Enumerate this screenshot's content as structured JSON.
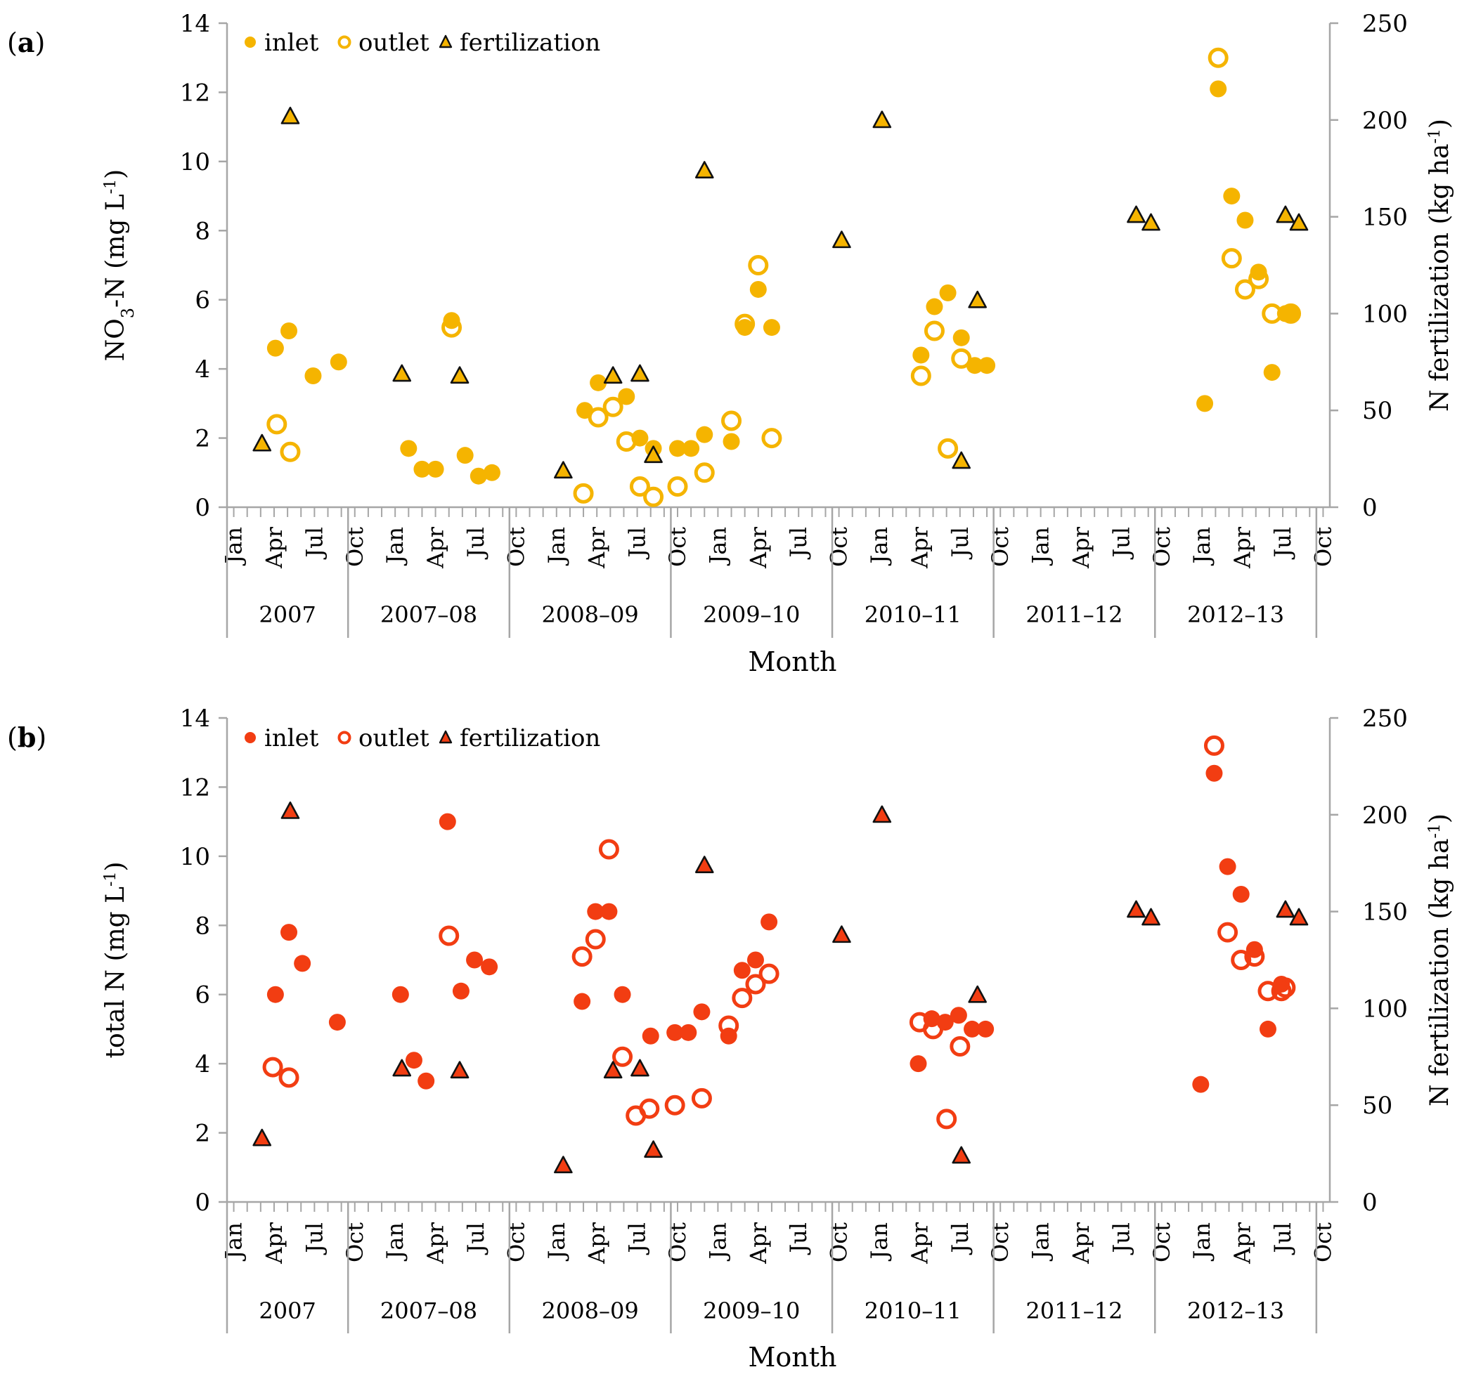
{
  "chart_data": [
    {
      "type": "scatter",
      "panel_label": "a",
      "ylabel": "NO3-N (mg L-1)",
      "ylabel_parts": {
        "pre": "NO",
        "sub": "3",
        "post": "-N (mg L",
        "sup": "-1",
        "end": ")"
      },
      "y2label": "N fertilization (kg ha-1)",
      "y2label_parts": {
        "pre": "N fertilization (kg ha",
        "sup": "-1",
        "end": ")"
      },
      "xlabel": "Month",
      "ylim": [
        0,
        14
      ],
      "y2lim": [
        0,
        250
      ],
      "yticks": [
        0,
        2,
        4,
        6,
        8,
        10,
        12,
        14
      ],
      "y2ticks": [
        0,
        50,
        100,
        150,
        200,
        250
      ],
      "color": "#F5B400",
      "legend": [
        {
          "label": "inlet",
          "marker": "filled-circle"
        },
        {
          "label": "outlet",
          "marker": "open-circle"
        },
        {
          "label": "fertilization",
          "marker": "triangle"
        }
      ],
      "series": [
        {
          "name": "inlet",
          "points": [
            [
              3.1,
              4.6
            ],
            [
              4.1,
              5.1
            ],
            [
              5.9,
              3.8
            ],
            [
              7.8,
              4.2
            ],
            [
              13.0,
              1.7
            ],
            [
              14.0,
              1.1
            ],
            [
              15.0,
              1.1
            ],
            [
              16.2,
              5.4
            ],
            [
              17.2,
              1.5
            ],
            [
              18.2,
              0.9
            ],
            [
              19.2,
              1.0
            ],
            [
              26.1,
              2.8
            ],
            [
              27.1,
              3.6
            ],
            [
              29.2,
              3.2
            ],
            [
              30.2,
              2.0
            ],
            [
              31.2,
              1.7
            ],
            [
              33.0,
              1.7
            ],
            [
              34.0,
              1.7
            ],
            [
              35.0,
              2.1
            ],
            [
              37.0,
              1.9
            ],
            [
              38.0,
              5.2
            ],
            [
              39.0,
              6.3
            ],
            [
              40.0,
              5.2
            ],
            [
              51.1,
              4.4
            ],
            [
              52.1,
              5.8
            ],
            [
              53.1,
              6.2
            ],
            [
              54.1,
              4.9
            ],
            [
              55.1,
              4.1
            ],
            [
              56.0,
              4.1
            ],
            [
              72.2,
              3.0
            ],
            [
              73.2,
              12.1
            ],
            [
              74.2,
              9.0
            ],
            [
              75.2,
              8.3
            ],
            [
              76.2,
              6.8
            ],
            [
              77.2,
              3.9
            ],
            [
              78.2,
              5.6
            ],
            [
              78.6,
              5.6
            ]
          ]
        },
        {
          "name": "outlet",
          "points": [
            [
              3.2,
              2.4
            ],
            [
              4.2,
              1.6
            ],
            [
              16.2,
              5.2
            ],
            [
              26.0,
              0.4
            ],
            [
              27.1,
              2.6
            ],
            [
              28.2,
              2.9
            ],
            [
              29.2,
              1.9
            ],
            [
              30.2,
              0.6
            ],
            [
              31.2,
              0.3
            ],
            [
              33.0,
              0.6
            ],
            [
              35.0,
              1.0
            ],
            [
              37.0,
              2.5
            ],
            [
              38.0,
              5.3
            ],
            [
              39.0,
              7.0
            ],
            [
              40.0,
              2.0
            ],
            [
              51.1,
              3.8
            ],
            [
              52.1,
              5.1
            ],
            [
              53.1,
              1.7
            ],
            [
              54.1,
              4.3
            ],
            [
              73.2,
              13.0
            ],
            [
              74.2,
              7.2
            ],
            [
              75.2,
              6.3
            ],
            [
              76.2,
              6.6
            ],
            [
              77.2,
              5.6
            ],
            [
              78.6,
              5.6
            ]
          ]
        },
        {
          "name": "fertilization",
          "axis": "right",
          "points": [
            [
              2.1,
              33
            ],
            [
              4.2,
              202
            ],
            [
              12.5,
              69
            ],
            [
              16.8,
              68
            ],
            [
              24.5,
              19
            ],
            [
              28.2,
              68
            ],
            [
              30.2,
              69
            ],
            [
              31.2,
              27
            ],
            [
              35.0,
              174
            ],
            [
              45.2,
              138
            ],
            [
              48.2,
              200
            ],
            [
              54.1,
              24
            ],
            [
              55.3,
              107
            ],
            [
              67.1,
              151
            ],
            [
              68.2,
              147
            ],
            [
              78.2,
              151
            ],
            [
              79.2,
              147
            ]
          ]
        }
      ]
    },
    {
      "type": "scatter",
      "panel_label": "b",
      "ylabel": "total N (mg L-1)",
      "ylabel_parts": {
        "pre": "total N (mg L",
        "sup": "-1",
        "end": ")"
      },
      "y2label": "N fertilization (kg ha-1)",
      "y2label_parts": {
        "pre": "N fertilization (kg ha",
        "sup": "-1",
        "end": ")"
      },
      "xlabel": "Month",
      "ylim": [
        0,
        14
      ],
      "y2lim": [
        0,
        250
      ],
      "yticks": [
        0,
        2,
        4,
        6,
        8,
        10,
        12,
        14
      ],
      "y2ticks": [
        0,
        50,
        100,
        150,
        200,
        250
      ],
      "color": "#F23D12",
      "legend": [
        {
          "label": "inlet",
          "marker": "filled-circle"
        },
        {
          "label": "outlet",
          "marker": "open-circle"
        },
        {
          "label": "fertilization",
          "marker": "triangle"
        }
      ],
      "series": [
        {
          "name": "inlet",
          "points": [
            [
              3.1,
              6.0
            ],
            [
              4.1,
              7.8
            ],
            [
              5.1,
              6.9
            ],
            [
              7.7,
              5.2
            ],
            [
              12.4,
              6.0
            ],
            [
              13.4,
              4.1
            ],
            [
              14.3,
              3.5
            ],
            [
              15.9,
              11.0
            ],
            [
              16.9,
              6.1
            ],
            [
              17.9,
              7.0
            ],
            [
              19.0,
              6.8
            ],
            [
              25.9,
              5.8
            ],
            [
              26.9,
              8.4
            ],
            [
              27.9,
              8.4
            ],
            [
              28.9,
              6.0
            ],
            [
              31.0,
              4.8
            ],
            [
              32.8,
              4.9
            ],
            [
              33.8,
              4.9
            ],
            [
              34.8,
              5.5
            ],
            [
              36.8,
              4.8
            ],
            [
              37.8,
              6.7
            ],
            [
              38.8,
              7.0
            ],
            [
              39.8,
              8.1
            ],
            [
              50.9,
              4.0
            ],
            [
              51.9,
              5.3
            ],
            [
              52.9,
              5.2
            ],
            [
              53.9,
              5.4
            ],
            [
              54.9,
              5.0
            ],
            [
              55.9,
              5.0
            ],
            [
              71.9,
              3.4
            ],
            [
              72.9,
              12.4
            ],
            [
              73.9,
              9.7
            ],
            [
              74.9,
              8.9
            ],
            [
              75.9,
              7.3
            ],
            [
              76.9,
              5.0
            ],
            [
              77.9,
              6.3
            ]
          ]
        },
        {
          "name": "outlet",
          "points": [
            [
              2.9,
              3.9
            ],
            [
              4.1,
              3.6
            ],
            [
              16.0,
              7.7
            ],
            [
              25.9,
              7.1
            ],
            [
              26.9,
              7.6
            ],
            [
              27.9,
              10.2
            ],
            [
              28.9,
              4.2
            ],
            [
              29.9,
              2.5
            ],
            [
              30.9,
              2.7
            ],
            [
              32.8,
              2.8
            ],
            [
              34.8,
              3.0
            ],
            [
              36.8,
              5.1
            ],
            [
              37.8,
              5.9
            ],
            [
              38.8,
              6.3
            ],
            [
              39.8,
              6.6
            ],
            [
              51.0,
              5.2
            ],
            [
              52.0,
              5.0
            ],
            [
              53.0,
              2.4
            ],
            [
              54.0,
              4.5
            ],
            [
              72.9,
              13.2
            ],
            [
              73.9,
              7.8
            ],
            [
              74.9,
              7.0
            ],
            [
              75.9,
              7.1
            ],
            [
              76.9,
              6.1
            ],
            [
              77.9,
              6.1
            ],
            [
              78.2,
              6.2
            ]
          ]
        },
        {
          "name": "fertilization",
          "axis": "right",
          "points": [
            [
              2.1,
              33
            ],
            [
              4.2,
              202
            ],
            [
              12.5,
              69
            ],
            [
              16.8,
              68
            ],
            [
              24.5,
              19
            ],
            [
              28.2,
              68
            ],
            [
              30.2,
              69
            ],
            [
              31.2,
              27
            ],
            [
              35.0,
              174
            ],
            [
              45.2,
              138
            ],
            [
              48.2,
              200
            ],
            [
              54.1,
              24
            ],
            [
              55.3,
              107
            ],
            [
              67.1,
              151
            ],
            [
              68.2,
              147
            ],
            [
              78.2,
              151
            ],
            [
              79.2,
              147
            ]
          ]
        }
      ]
    }
  ],
  "x_axis": {
    "month_labels": [
      {
        "m": 0,
        "label": "Jan"
      },
      {
        "m": 3,
        "label": "Apr"
      },
      {
        "m": 6,
        "label": "Jul"
      },
      {
        "m": 9,
        "label": "Oct"
      },
      {
        "m": 12,
        "label": "Jan"
      },
      {
        "m": 15,
        "label": "Apr"
      },
      {
        "m": 18,
        "label": "Jul"
      },
      {
        "m": 21,
        "label": "Oct"
      },
      {
        "m": 24,
        "label": "Jan"
      },
      {
        "m": 27,
        "label": "Apr"
      },
      {
        "m": 30,
        "label": "Jul"
      },
      {
        "m": 33,
        "label": "Oct"
      },
      {
        "m": 36,
        "label": "Jan"
      },
      {
        "m": 39,
        "label": "Apr"
      },
      {
        "m": 42,
        "label": "Jul"
      },
      {
        "m": 45,
        "label": "Oct"
      },
      {
        "m": 48,
        "label": "Jan"
      },
      {
        "m": 51,
        "label": "Apr"
      },
      {
        "m": 54,
        "label": "Jul"
      },
      {
        "m": 57,
        "label": "Oct"
      },
      {
        "m": 60,
        "label": "Jan"
      },
      {
        "m": 63,
        "label": "Apr"
      },
      {
        "m": 66,
        "label": "Jul"
      },
      {
        "m": 69,
        "label": "Oct"
      },
      {
        "m": 72,
        "label": "Jan"
      },
      {
        "m": 75,
        "label": "Apr"
      },
      {
        "m": 78,
        "label": "Jul"
      },
      {
        "m": 81,
        "label": "Oct"
      }
    ],
    "seasons": [
      {
        "label": "2007",
        "start": -0.5,
        "end": 8.5
      },
      {
        "label": "2007–08",
        "start": 8.5,
        "end": 20.5
      },
      {
        "label": "2008–09",
        "start": 20.5,
        "end": 32.5
      },
      {
        "label": "2009–10",
        "start": 32.5,
        "end": 44.5
      },
      {
        "label": "2010–11",
        "start": 44.5,
        "end": 56.5
      },
      {
        "label": "2011–12",
        "start": 56.5,
        "end": 68.5
      },
      {
        "label": "2012–13",
        "start": 68.5,
        "end": 80.5
      }
    ],
    "x_range": [
      -0.5,
      81.5
    ]
  }
}
